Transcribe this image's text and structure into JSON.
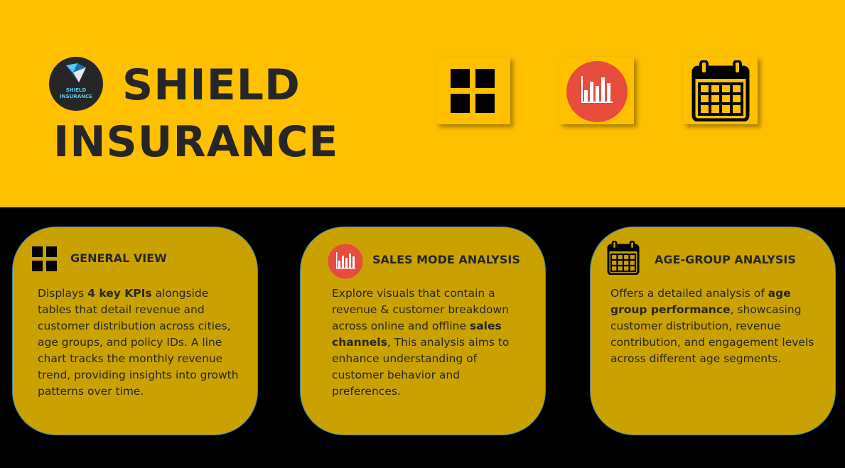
{
  "header": {
    "logo": {
      "line1": "SHIELD",
      "line2": "INSURANCE"
    },
    "title_line1": "SHIELD",
    "title_line2": "INSURANCE",
    "nav": [
      {
        "icon": "grid-icon"
      },
      {
        "icon": "bar-chart-icon"
      },
      {
        "icon": "calendar-icon"
      }
    ]
  },
  "colors": {
    "header_bg": "#FFC000",
    "card_bg": "#C9A200",
    "card_border": "#3B7FB3",
    "accent_red": "#E74C3C",
    "text_dark": "#262626",
    "logo_text": "#5FC8F0"
  },
  "cards": [
    {
      "title": "GENERAL VIEW",
      "icon": "grid-icon",
      "body": [
        {
          "t": "Displays "
        },
        {
          "t": "4 key KPIs",
          "b": true
        },
        {
          "t": " alongside tables that detail revenue and customer distribution across cities, age groups, and policy IDs. A line chart tracks the monthly revenue trend, providing insights into growth patterns over time."
        }
      ]
    },
    {
      "title": "SALES MODE ANALYSIS",
      "icon": "bar-chart-icon",
      "body": [
        {
          "t": "Explore visuals that contain a revenue & customer breakdown across  online and offline "
        },
        {
          "t": "sales channels",
          "b": true
        },
        {
          "t": ", This analysis aims to enhance understanding of customer behavior and preferences."
        }
      ]
    },
    {
      "title": "AGE-GROUP ANALYSIS",
      "icon": "calendar-icon",
      "body": [
        {
          "t": "Offers a detailed analysis of "
        },
        {
          "t": "age group performance",
          "b": true
        },
        {
          "t": ", showcasing customer distribution, revenue contribution, and engagement levels across different age segments."
        }
      ]
    }
  ]
}
